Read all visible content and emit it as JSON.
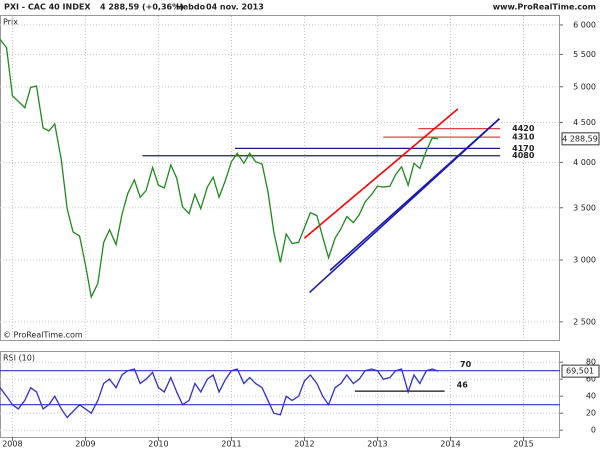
{
  "header": {
    "symbol": "PXI - CAC 40 INDEX",
    "quote": "4 288,59 (+0,36%)",
    "period": "Hebdo",
    "date": "04 nov. 2013",
    "site": "www.ProRealTime.com"
  },
  "footer": "© ProRealTime.com",
  "chart_data": [
    {
      "type": "line",
      "title": "Prix",
      "log_scale": true,
      "grid": true,
      "xlim": [
        2007.83,
        2015.5
      ],
      "xticks": [
        2008,
        2009,
        2010,
        2011,
        2012,
        2013,
        2014,
        2015
      ],
      "ylim": [
        2370,
        6160
      ],
      "yticks": [
        {
          "value": 2500,
          "label": "2 500"
        },
        {
          "value": 3000,
          "label": "3 000"
        },
        {
          "value": 3500,
          "label": "3 500"
        },
        {
          "value": 4000,
          "label": "4 000"
        },
        {
          "value": 4500,
          "label": "4 500"
        },
        {
          "value": 5000,
          "label": "5 000"
        },
        {
          "value": 5500,
          "label": "5 500"
        },
        {
          "value": 6000,
          "label": "6 000"
        }
      ],
      "x": [
        2007.83,
        2007.92,
        2008.0,
        2008.08,
        2008.17,
        2008.25,
        2008.33,
        2008.42,
        2008.5,
        2008.58,
        2008.67,
        2008.75,
        2008.83,
        2008.92,
        2009.0,
        2009.08,
        2009.17,
        2009.25,
        2009.33,
        2009.42,
        2009.5,
        2009.58,
        2009.67,
        2009.75,
        2009.83,
        2009.92,
        2010.0,
        2010.08,
        2010.17,
        2010.25,
        2010.33,
        2010.42,
        2010.5,
        2010.58,
        2010.67,
        2010.75,
        2010.83,
        2010.92,
        2011.0,
        2011.08,
        2011.17,
        2011.25,
        2011.33,
        2011.42,
        2011.5,
        2011.58,
        2011.67,
        2011.75,
        2011.83,
        2011.92,
        2012.0,
        2012.08,
        2012.17,
        2012.25,
        2012.33,
        2012.42,
        2012.5,
        2012.58,
        2012.67,
        2012.75,
        2012.83,
        2012.92,
        2013.0,
        2013.08,
        2013.17,
        2013.25,
        2013.33,
        2013.42,
        2013.5,
        2013.58,
        2013.67,
        2013.75,
        2013.83
      ],
      "series": [
        {
          "color": "#1f8a1f",
          "values": [
            5750,
            5610,
            4870,
            4790,
            4700,
            4990,
            5010,
            4430,
            4390,
            4480,
            4030,
            3490,
            3260,
            3220,
            2960,
            2690,
            2800,
            3160,
            3280,
            3140,
            3430,
            3650,
            3800,
            3610,
            3680,
            3940,
            3740,
            3710,
            3970,
            3820,
            3510,
            3440,
            3640,
            3490,
            3720,
            3830,
            3610,
            3800,
            4010,
            4110,
            3990,
            4110,
            4010,
            3980,
            3670,
            3260,
            2980,
            3240,
            3150,
            3160,
            3300,
            3450,
            3420,
            3210,
            3020,
            3200,
            3290,
            3410,
            3350,
            3430,
            3560,
            3640,
            3730,
            3720,
            3730,
            3860,
            3950,
            3740,
            3990,
            3930,
            4140,
            4300,
            4288.59
          ]
        }
      ],
      "last_label": {
        "value": 4288.59,
        "label": "4 288,59"
      },
      "levels": [
        {
          "value": 4420,
          "color": "#e04040",
          "x": [
            2013.56,
            2014.68
          ]
        },
        {
          "value": 4310,
          "color": "#e04040",
          "x": [
            2013.08,
            2014.68
          ]
        },
        {
          "value": 4170,
          "color": "#1a1a8c",
          "x": [
            2011.05,
            2014.68
          ]
        },
        {
          "value": 4080,
          "color": "#1a1a8c",
          "x": [
            2009.78,
            2014.68
          ]
        }
      ],
      "trendlines": [
        {
          "color": "#ff0000",
          "x": [
            2012.0,
            2014.1
          ],
          "y": [
            3200,
            4683
          ]
        },
        {
          "color": "#1a1ab0",
          "x": [
            2012.07,
            2014.67
          ],
          "y": [
            2727,
            4550
          ]
        },
        {
          "color": "#1a1ab0",
          "x": [
            2012.35,
            2014.67
          ],
          "y": [
            2910,
            4550
          ]
        }
      ]
    },
    {
      "type": "line",
      "title": "RSI (10)",
      "grid": true,
      "xlim": [
        2007.83,
        2015.5
      ],
      "xticks": [
        2008,
        2009,
        2010,
        2011,
        2012,
        2013,
        2014,
        2015
      ],
      "ylim": [
        -8,
        92
      ],
      "yticks": [
        0,
        20,
        40,
        60,
        80
      ],
      "x": [
        2007.83,
        2007.92,
        2008.0,
        2008.08,
        2008.17,
        2008.25,
        2008.33,
        2008.42,
        2008.5,
        2008.58,
        2008.67,
        2008.75,
        2008.83,
        2008.92,
        2009.0,
        2009.08,
        2009.17,
        2009.25,
        2009.33,
        2009.42,
        2009.5,
        2009.58,
        2009.67,
        2009.75,
        2009.83,
        2009.92,
        2010.0,
        2010.08,
        2010.17,
        2010.25,
        2010.33,
        2010.42,
        2010.5,
        2010.58,
        2010.67,
        2010.75,
        2010.83,
        2010.92,
        2011.0,
        2011.08,
        2011.17,
        2011.25,
        2011.33,
        2011.42,
        2011.5,
        2011.58,
        2011.67,
        2011.75,
        2011.83,
        2011.92,
        2012.0,
        2012.08,
        2012.17,
        2012.25,
        2012.33,
        2012.42,
        2012.5,
        2012.58,
        2012.67,
        2012.75,
        2012.83,
        2012.92,
        2013.0,
        2013.08,
        2013.17,
        2013.25,
        2013.33,
        2013.42,
        2013.5,
        2013.58,
        2013.67,
        2013.75,
        2013.83
      ],
      "series": [
        {
          "color": "#3232c8",
          "values": [
            50,
            40,
            30,
            25,
            35,
            50,
            45,
            25,
            30,
            40,
            25,
            15,
            22,
            30,
            25,
            20,
            35,
            55,
            60,
            50,
            65,
            70,
            72,
            55,
            60,
            68,
            50,
            45,
            62,
            45,
            30,
            35,
            55,
            45,
            60,
            65,
            45,
            60,
            70,
            72,
            55,
            62,
            55,
            50,
            35,
            20,
            18,
            40,
            35,
            40,
            58,
            65,
            55,
            40,
            30,
            50,
            55,
            65,
            55,
            60,
            70,
            72,
            70,
            60,
            62,
            70,
            72,
            45,
            65,
            55,
            70,
            72,
            69.501
          ]
        }
      ],
      "last_label": {
        "value": 69.501,
        "label": "69,501"
      },
      "levels": [
        {
          "value": 70,
          "color": "#3232c8",
          "show_label": true
        },
        {
          "value": 30,
          "color": "#3232c8"
        },
        {
          "value": 46,
          "color": "#111111",
          "x": [
            2012.69,
            2013.92
          ],
          "show_label": true
        }
      ]
    }
  ]
}
